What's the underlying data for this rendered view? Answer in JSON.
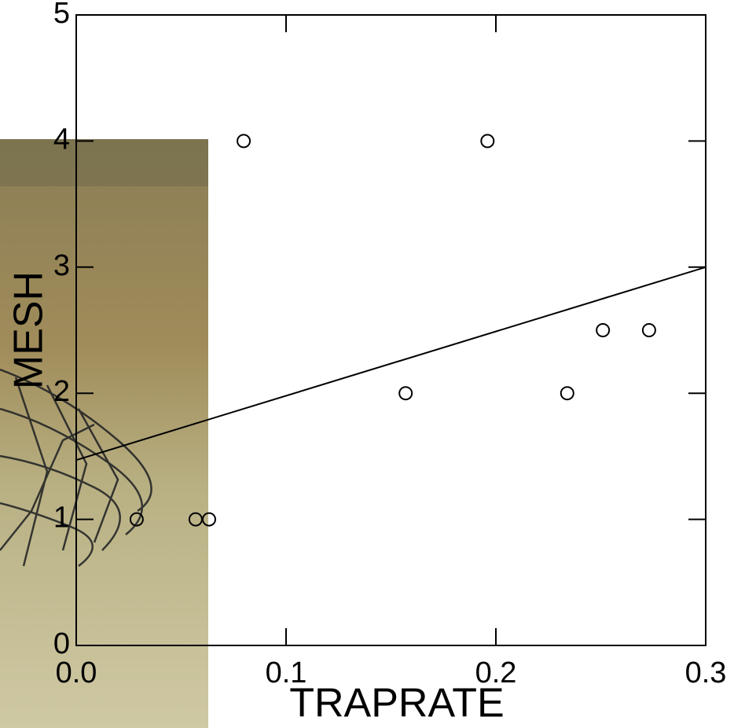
{
  "chart_data": {
    "type": "scatter",
    "x_label": "TRAPRATE",
    "y_label": "MESH",
    "x": [
      0.0288,
      0.0569,
      0.0633,
      0.0798,
      0.157,
      0.196,
      0.234,
      0.251,
      0.273
    ],
    "values": [
      1,
      1,
      1,
      4,
      2,
      4,
      2,
      2.5,
      2.5
    ],
    "fit_line": {
      "x": [
        0,
        0.3
      ],
      "values": [
        1.47,
        3.0
      ]
    },
    "color": "#000000",
    "xlim": [
      0,
      0.3
    ],
    "ylim": [
      0,
      5
    ],
    "xticks": [
      {
        "value": 0,
        "label": "0.0"
      },
      0.1,
      0.2,
      0.3
    ],
    "yticks": [
      0,
      1,
      2,
      3,
      4,
      5
    ]
  }
}
